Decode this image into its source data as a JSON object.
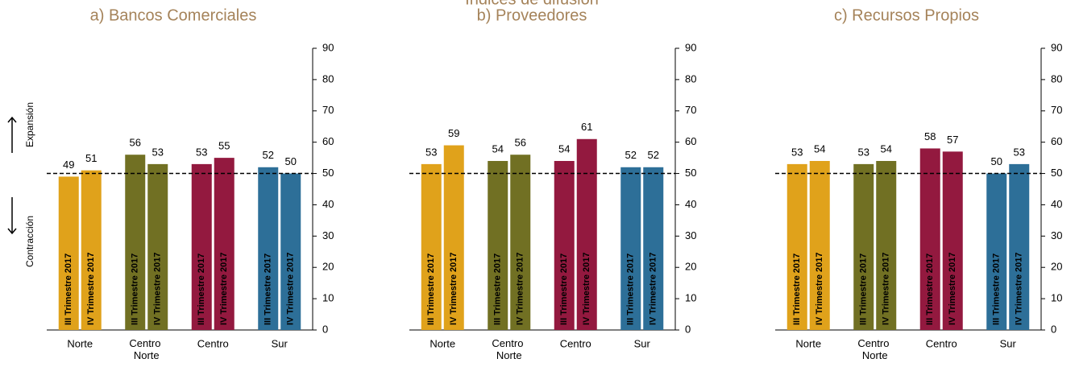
{
  "title": "Índices de difusión",
  "annotations": [
    "Expansión",
    "Contracción"
  ],
  "chart_data": [
    {
      "type": "bar",
      "title": "a) Bancos Comerciales",
      "categories": [
        "Norte",
        "Centro Norte",
        "Centro",
        "Sur"
      ],
      "colors": [
        "#e0a21b",
        "#717023",
        "#93193f",
        "#2d6f98"
      ],
      "series": [
        {
          "name": "III Trimestre 2017",
          "values": [
            49,
            56,
            53,
            52
          ]
        },
        {
          "name": "IV Trimestre 2017",
          "values": [
            51,
            53,
            55,
            50
          ]
        }
      ],
      "ylim": [
        0,
        90
      ],
      "yticks": [
        0,
        10,
        20,
        30,
        40,
        50,
        60,
        70,
        80,
        90
      ],
      "reference_line": 50
    },
    {
      "type": "bar",
      "title": "b) Proveedores",
      "categories": [
        "Norte",
        "Centro Norte",
        "Centro",
        "Sur"
      ],
      "colors": [
        "#e0a21b",
        "#717023",
        "#93193f",
        "#2d6f98"
      ],
      "series": [
        {
          "name": "III Trimestre 2017",
          "values": [
            53,
            54,
            54,
            52
          ]
        },
        {
          "name": "IV Trimestre 2017",
          "values": [
            59,
            56,
            61,
            52
          ]
        }
      ],
      "ylim": [
        0,
        90
      ],
      "yticks": [
        0,
        10,
        20,
        30,
        40,
        50,
        60,
        70,
        80,
        90
      ],
      "reference_line": 50
    },
    {
      "type": "bar",
      "title": "c) Recursos Propios",
      "categories": [
        "Norte",
        "Centro Norte",
        "Centro",
        "Sur"
      ],
      "colors": [
        "#e0a21b",
        "#717023",
        "#93193f",
        "#2d6f98"
      ],
      "series": [
        {
          "name": "III Trimestre 2017",
          "values": [
            53,
            53,
            58,
            50
          ]
        },
        {
          "name": "IV Trimestre 2017",
          "values": [
            54,
            54,
            57,
            53
          ]
        }
      ],
      "ylim": [
        0,
        90
      ],
      "yticks": [
        0,
        10,
        20,
        30,
        40,
        50,
        60,
        70,
        80,
        90
      ],
      "reference_line": 50
    }
  ]
}
